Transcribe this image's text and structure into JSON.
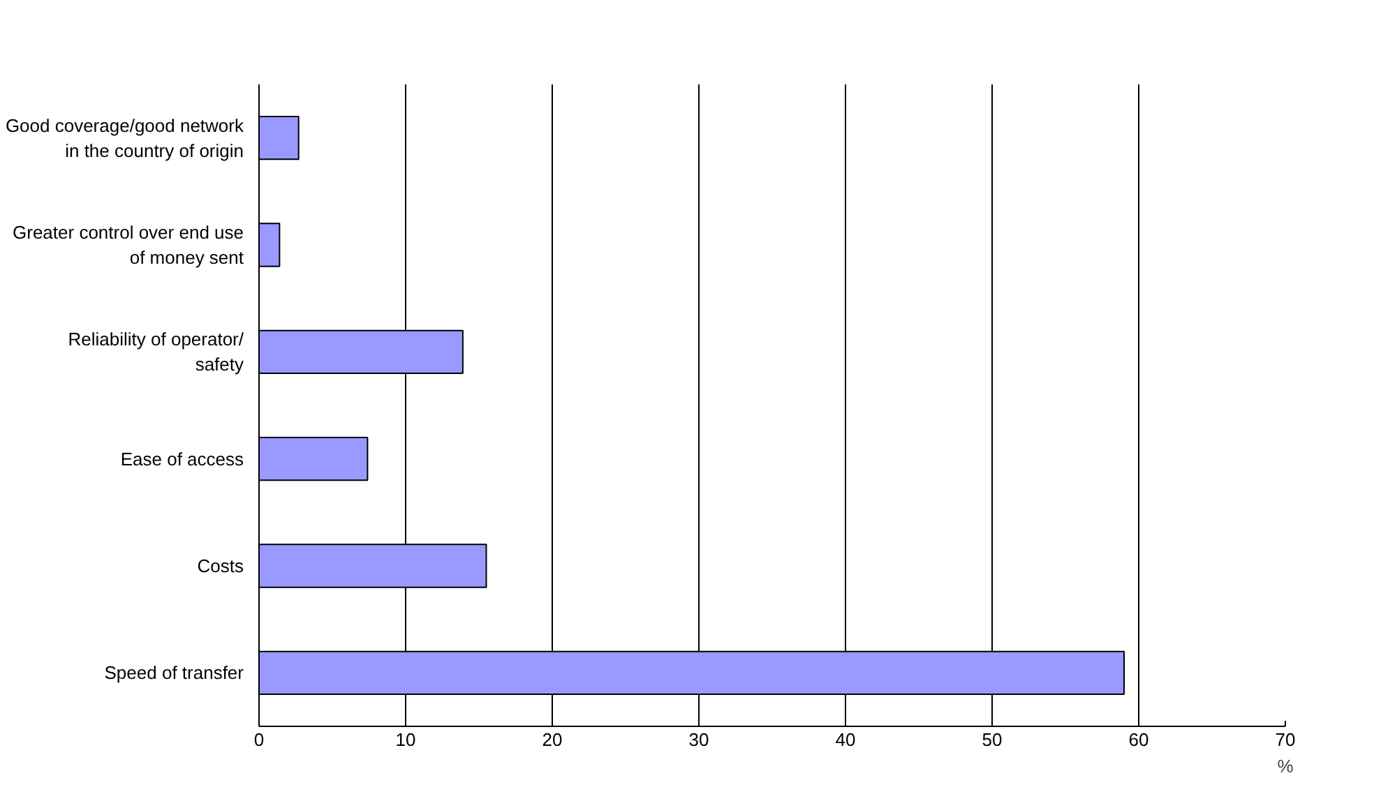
{
  "chart_data": {
    "type": "bar",
    "orientation": "horizontal",
    "xlabel": "%",
    "categories": [
      "Good coverage/good network in the country of origin",
      "Greater control over end use of money sent",
      "Reliability of operator/ safety",
      "Ease of access",
      "Costs",
      "Speed of transfer"
    ],
    "values": [
      2.7,
      1.4,
      13.9,
      7.4,
      15.5,
      59.0
    ],
    "color": "#9999ff",
    "xlim": [
      0,
      70
    ],
    "xticks": [
      0,
      10,
      20,
      30,
      40,
      50,
      60,
      70
    ],
    "grid": "x"
  }
}
